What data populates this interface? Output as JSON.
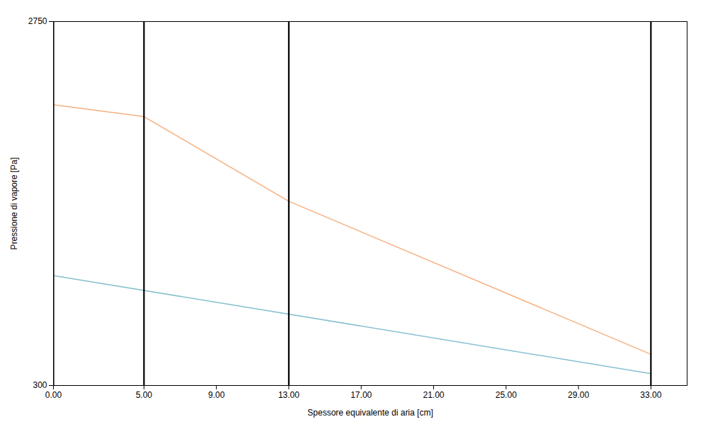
{
  "chart_data": {
    "type": "line",
    "xlabel": "Spessore equivalente di aria [cm]",
    "ylabel": "Pressione di vapore [Pa]",
    "xlim": [
      0.0,
      35.0
    ],
    "ylim": [
      300,
      2750
    ],
    "xticks": [
      {
        "value": 0.0,
        "label": "0.00"
      },
      {
        "value": 5.0,
        "label": "5.00"
      },
      {
        "value": 9.0,
        "label": "9.00"
      },
      {
        "value": 13.0,
        "label": "13.00"
      },
      {
        "value": 17.0,
        "label": "17.00"
      },
      {
        "value": 21.0,
        "label": "21.00"
      },
      {
        "value": 25.0,
        "label": "25.00"
      },
      {
        "value": 29.0,
        "label": "29.00"
      },
      {
        "value": 33.0,
        "label": "33.00"
      }
    ],
    "yticks": [
      300,
      2750
    ],
    "grid": false,
    "series": [
      {
        "color": "#f5b080",
        "x": [
          0.0,
          5.0,
          13.0,
          33.0
        ],
        "values": [
          2190,
          2110,
          1540,
          510
        ]
      },
      {
        "color": "#88c0d0",
        "x": [
          0.0,
          33.0
        ],
        "values": [
          1040,
          380
        ]
      }
    ],
    "vlines": [
      0.0,
      5.0,
      13.0,
      33.0
    ]
  }
}
